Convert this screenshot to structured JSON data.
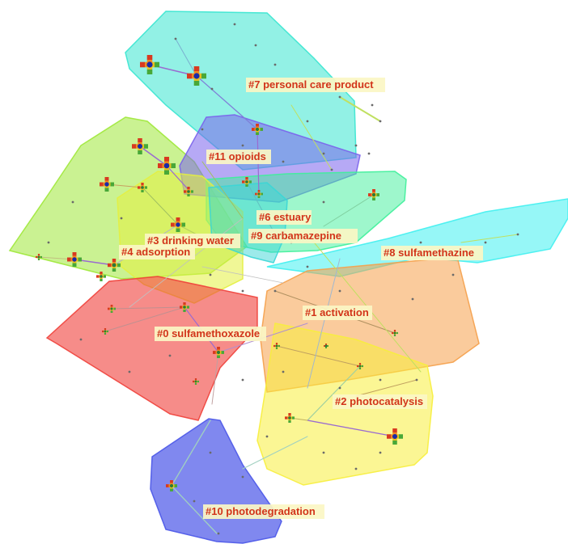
{
  "clusters": [
    {
      "id": "0",
      "label": "#0 sulfamethoxazole",
      "color": "#f0403a"
    },
    {
      "id": "1",
      "label": "#1 activation",
      "color": "#f5a04a"
    },
    {
      "id": "2",
      "label": "#2 photocatalysis",
      "color": "#f7ee3c"
    },
    {
      "id": "3",
      "label": "#3 drinking water",
      "color": "#e4f040"
    },
    {
      "id": "4",
      "label": "#4 adsorption",
      "color": "#9fe838"
    },
    {
      "id": "6",
      "label": "#6 estuary",
      "color": "#3ef09a"
    },
    {
      "id": "7",
      "label": "#7 personal care product",
      "color": "#38e6d0"
    },
    {
      "id": "8",
      "label": "#8 sulfamethazine",
      "color": "#40f0f0"
    },
    {
      "id": "9",
      "label": "#9 carbamazepine",
      "color": "#3ad6d6"
    },
    {
      "id": "10",
      "label": "#10 photodegradation",
      "color": "#4a56e8"
    },
    {
      "id": "11",
      "label": "#11 opioids",
      "color": "#7a62ec"
    }
  ]
}
